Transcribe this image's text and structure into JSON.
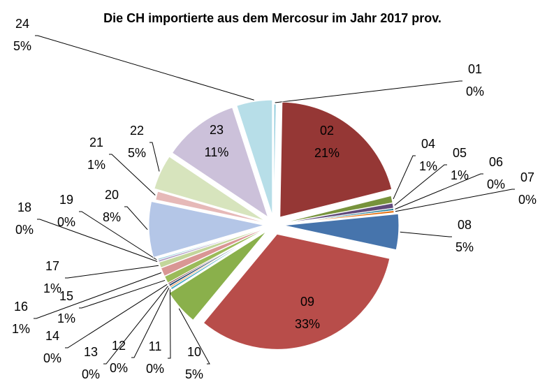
{
  "chart_data": {
    "type": "pie",
    "title": "Die CH importierte aus dem Mercosur im Jahr 2017 prov.",
    "categories": [
      "01",
      "02",
      "04",
      "05",
      "06",
      "07",
      "08",
      "09",
      "10",
      "11",
      "12",
      "13",
      "14",
      "15",
      "16",
      "17",
      "18",
      "19",
      "20",
      "21",
      "22",
      "23",
      "24"
    ],
    "values": [
      0.3,
      20.8,
      1,
      0.7,
      0.3,
      0.3,
      5,
      32.6,
      5,
      0.3,
      0.2,
      0.3,
      0.2,
      1,
      1.2,
      0.8,
      0.3,
      0.2,
      7.8,
      1.2,
      4.9,
      10.6,
      5
    ],
    "value_labels": [
      "0%",
      "21%",
      "1%",
      "1%",
      "0%",
      "0%",
      "5%",
      "33%",
      "5%",
      "0%",
      "0%",
      "0%",
      "0%",
      "1%",
      "1%",
      "1%",
      "0%",
      "0%",
      "8%",
      "1%",
      "5%",
      "11%",
      "5%"
    ],
    "colors": [
      "#93cddd",
      "#953735",
      "#77933c",
      "#604a7b",
      "#31859c",
      "#e46c0a",
      "#4674ac",
      "#b84d4a",
      "#8ab04b",
      "#4bacc6",
      "#f79646",
      "#2c4d75",
      "#772c2a",
      "#9bbb59",
      "#d99694",
      "#c3d69b",
      "#b3a2c7",
      "#93cddd",
      "#b4c6e7",
      "#e6b9b8",
      "#d7e4bd",
      "#ccc1da",
      "#b7dee8"
    ]
  }
}
